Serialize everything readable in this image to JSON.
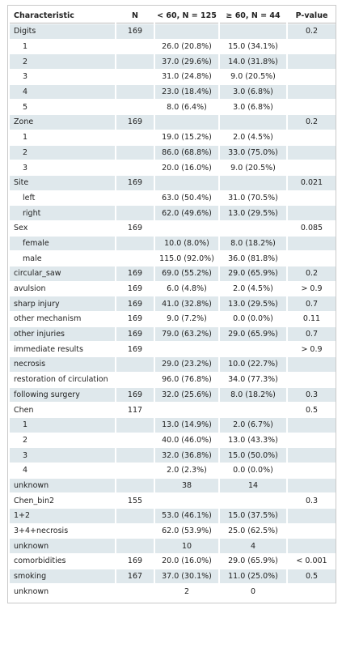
{
  "table": {
    "header": [
      "Characteristic",
      "N",
      "< 60, N = 125",
      "≥ 60, N = 44",
      "P-value"
    ],
    "rows": [
      {
        "cells": [
          "Digits",
          "169",
          null,
          null,
          "0.2"
        ],
        "sub": false
      },
      {
        "cells": [
          "1",
          null,
          "26.0 (20.8%)",
          "15.0 (34.1%)",
          null
        ],
        "sub": true
      },
      {
        "cells": [
          "2",
          null,
          "37.0 (29.6%)",
          "14.0 (31.8%)",
          null
        ],
        "sub": true
      },
      {
        "cells": [
          "3",
          null,
          "31.0 (24.8%)",
          "9.0 (20.5%)",
          null
        ],
        "sub": true
      },
      {
        "cells": [
          "4",
          null,
          "23.0 (18.4%)",
          "3.0 (6.8%)",
          null
        ],
        "sub": true
      },
      {
        "cells": [
          "5",
          null,
          "8.0 (6.4%)",
          "3.0 (6.8%)",
          null
        ],
        "sub": true
      },
      {
        "cells": [
          "Zone",
          "169",
          null,
          null,
          "0.2"
        ],
        "sub": false
      },
      {
        "cells": [
          "1",
          null,
          "19.0 (15.2%)",
          "2.0 (4.5%)",
          null
        ],
        "sub": true
      },
      {
        "cells": [
          "2",
          null,
          "86.0 (68.8%)",
          "33.0 (75.0%)",
          null
        ],
        "sub": true
      },
      {
        "cells": [
          "3",
          null,
          "20.0 (16.0%)",
          "9.0 (20.5%)",
          null
        ],
        "sub": true
      },
      {
        "cells": [
          "Site",
          "169",
          null,
          null,
          "0.021"
        ],
        "sub": false
      },
      {
        "cells": [
          "left",
          null,
          "63.0 (50.4%)",
          "31.0 (70.5%)",
          null
        ],
        "sub": true
      },
      {
        "cells": [
          "right",
          null,
          "62.0 (49.6%)",
          "13.0 (29.5%)",
          null
        ],
        "sub": true
      },
      {
        "cells": [
          "Sex",
          "169",
          null,
          null,
          "0.085"
        ],
        "sub": false
      },
      {
        "cells": [
          "female",
          null,
          "10.0 (8.0%)",
          "8.0 (18.2%)",
          null
        ],
        "sub": true
      },
      {
        "cells": [
          "male",
          null,
          "115.0 (92.0%)",
          "36.0 (81.8%)",
          null
        ],
        "sub": true
      },
      {
        "cells": [
          "circular_saw",
          "169",
          "69.0 (55.2%)",
          "29.0 (65.9%)",
          "0.2"
        ],
        "sub": false
      },
      {
        "cells": [
          "avulsion",
          "169",
          "6.0 (4.8%)",
          "2.0 (4.5%)",
          "> 0.9"
        ],
        "sub": false
      },
      {
        "cells": [
          "sharp injury",
          "169",
          "41.0 (32.8%)",
          "13.0 (29.5%)",
          "0.7"
        ],
        "sub": false
      },
      {
        "cells": [
          "other mechanism",
          "169",
          "9.0 (7.2%)",
          "0.0 (0.0%)",
          "0.11"
        ],
        "sub": false
      },
      {
        "cells": [
          "other injuries",
          "169",
          "79.0 (63.2%)",
          "29.0 (65.9%)",
          "0.7"
        ],
        "sub": false
      },
      {
        "cells": [
          "immediate results",
          "169",
          null,
          null,
          "> 0.9"
        ],
        "sub": false
      },
      {
        "cells": [
          "necrosis",
          null,
          "29.0 (23.2%)",
          "10.0 (22.7%)",
          null
        ],
        "sub": false
      },
      {
        "cells": [
          "restoration of circulation",
          null,
          "96.0 (76.8%)",
          "34.0 (77.3%)",
          null
        ],
        "sub": false
      },
      {
        "cells": [
          "following surgery",
          "169",
          "32.0 (25.6%)",
          "8.0 (18.2%)",
          "0.3"
        ],
        "sub": false
      },
      {
        "cells": [
          "Chen",
          "117",
          null,
          null,
          "0.5"
        ],
        "sub": false
      },
      {
        "cells": [
          "1",
          null,
          "13.0 (14.9%)",
          "2.0 (6.7%)",
          null
        ],
        "sub": true
      },
      {
        "cells": [
          "2",
          null,
          "40.0 (46.0%)",
          "13.0 (43.3%)",
          null
        ],
        "sub": true
      },
      {
        "cells": [
          "3",
          null,
          "32.0 (36.8%)",
          "15.0 (50.0%)",
          null
        ],
        "sub": true
      },
      {
        "cells": [
          "4",
          null,
          "2.0 (2.3%)",
          "0.0 (0.0%)",
          null
        ],
        "sub": true
      },
      {
        "cells": [
          "unknown",
          null,
          "38",
          "14",
          null
        ],
        "sub": false
      },
      {
        "cells": [
          "Chen_bin2",
          "155",
          null,
          null,
          "0.3"
        ],
        "sub": false
      },
      {
        "cells": [
          "1+2",
          null,
          "53.0 (46.1%)",
          "15.0 (37.5%)",
          null
        ],
        "sub": false
      },
      {
        "cells": [
          "3+4+necrosis",
          null,
          "62.0 (53.9%)",
          "25.0 (62.5%)",
          null
        ],
        "sub": false
      },
      {
        "cells": [
          "unknown",
          null,
          "10",
          "4",
          null
        ],
        "sub": false
      },
      {
        "cells": [
          "comorbidities",
          "169",
          "20.0 (16.0%)",
          "29.0 (65.9%)",
          "< 0.001"
        ],
        "sub": false
      },
      {
        "cells": [
          "smoking",
          "167",
          "37.0 (30.1%)",
          "11.0 (25.0%)",
          "0.5"
        ],
        "sub": false
      },
      {
        "cells": [
          "unknown",
          null,
          "2",
          "0",
          null
        ],
        "sub": false
      }
    ]
  }
}
